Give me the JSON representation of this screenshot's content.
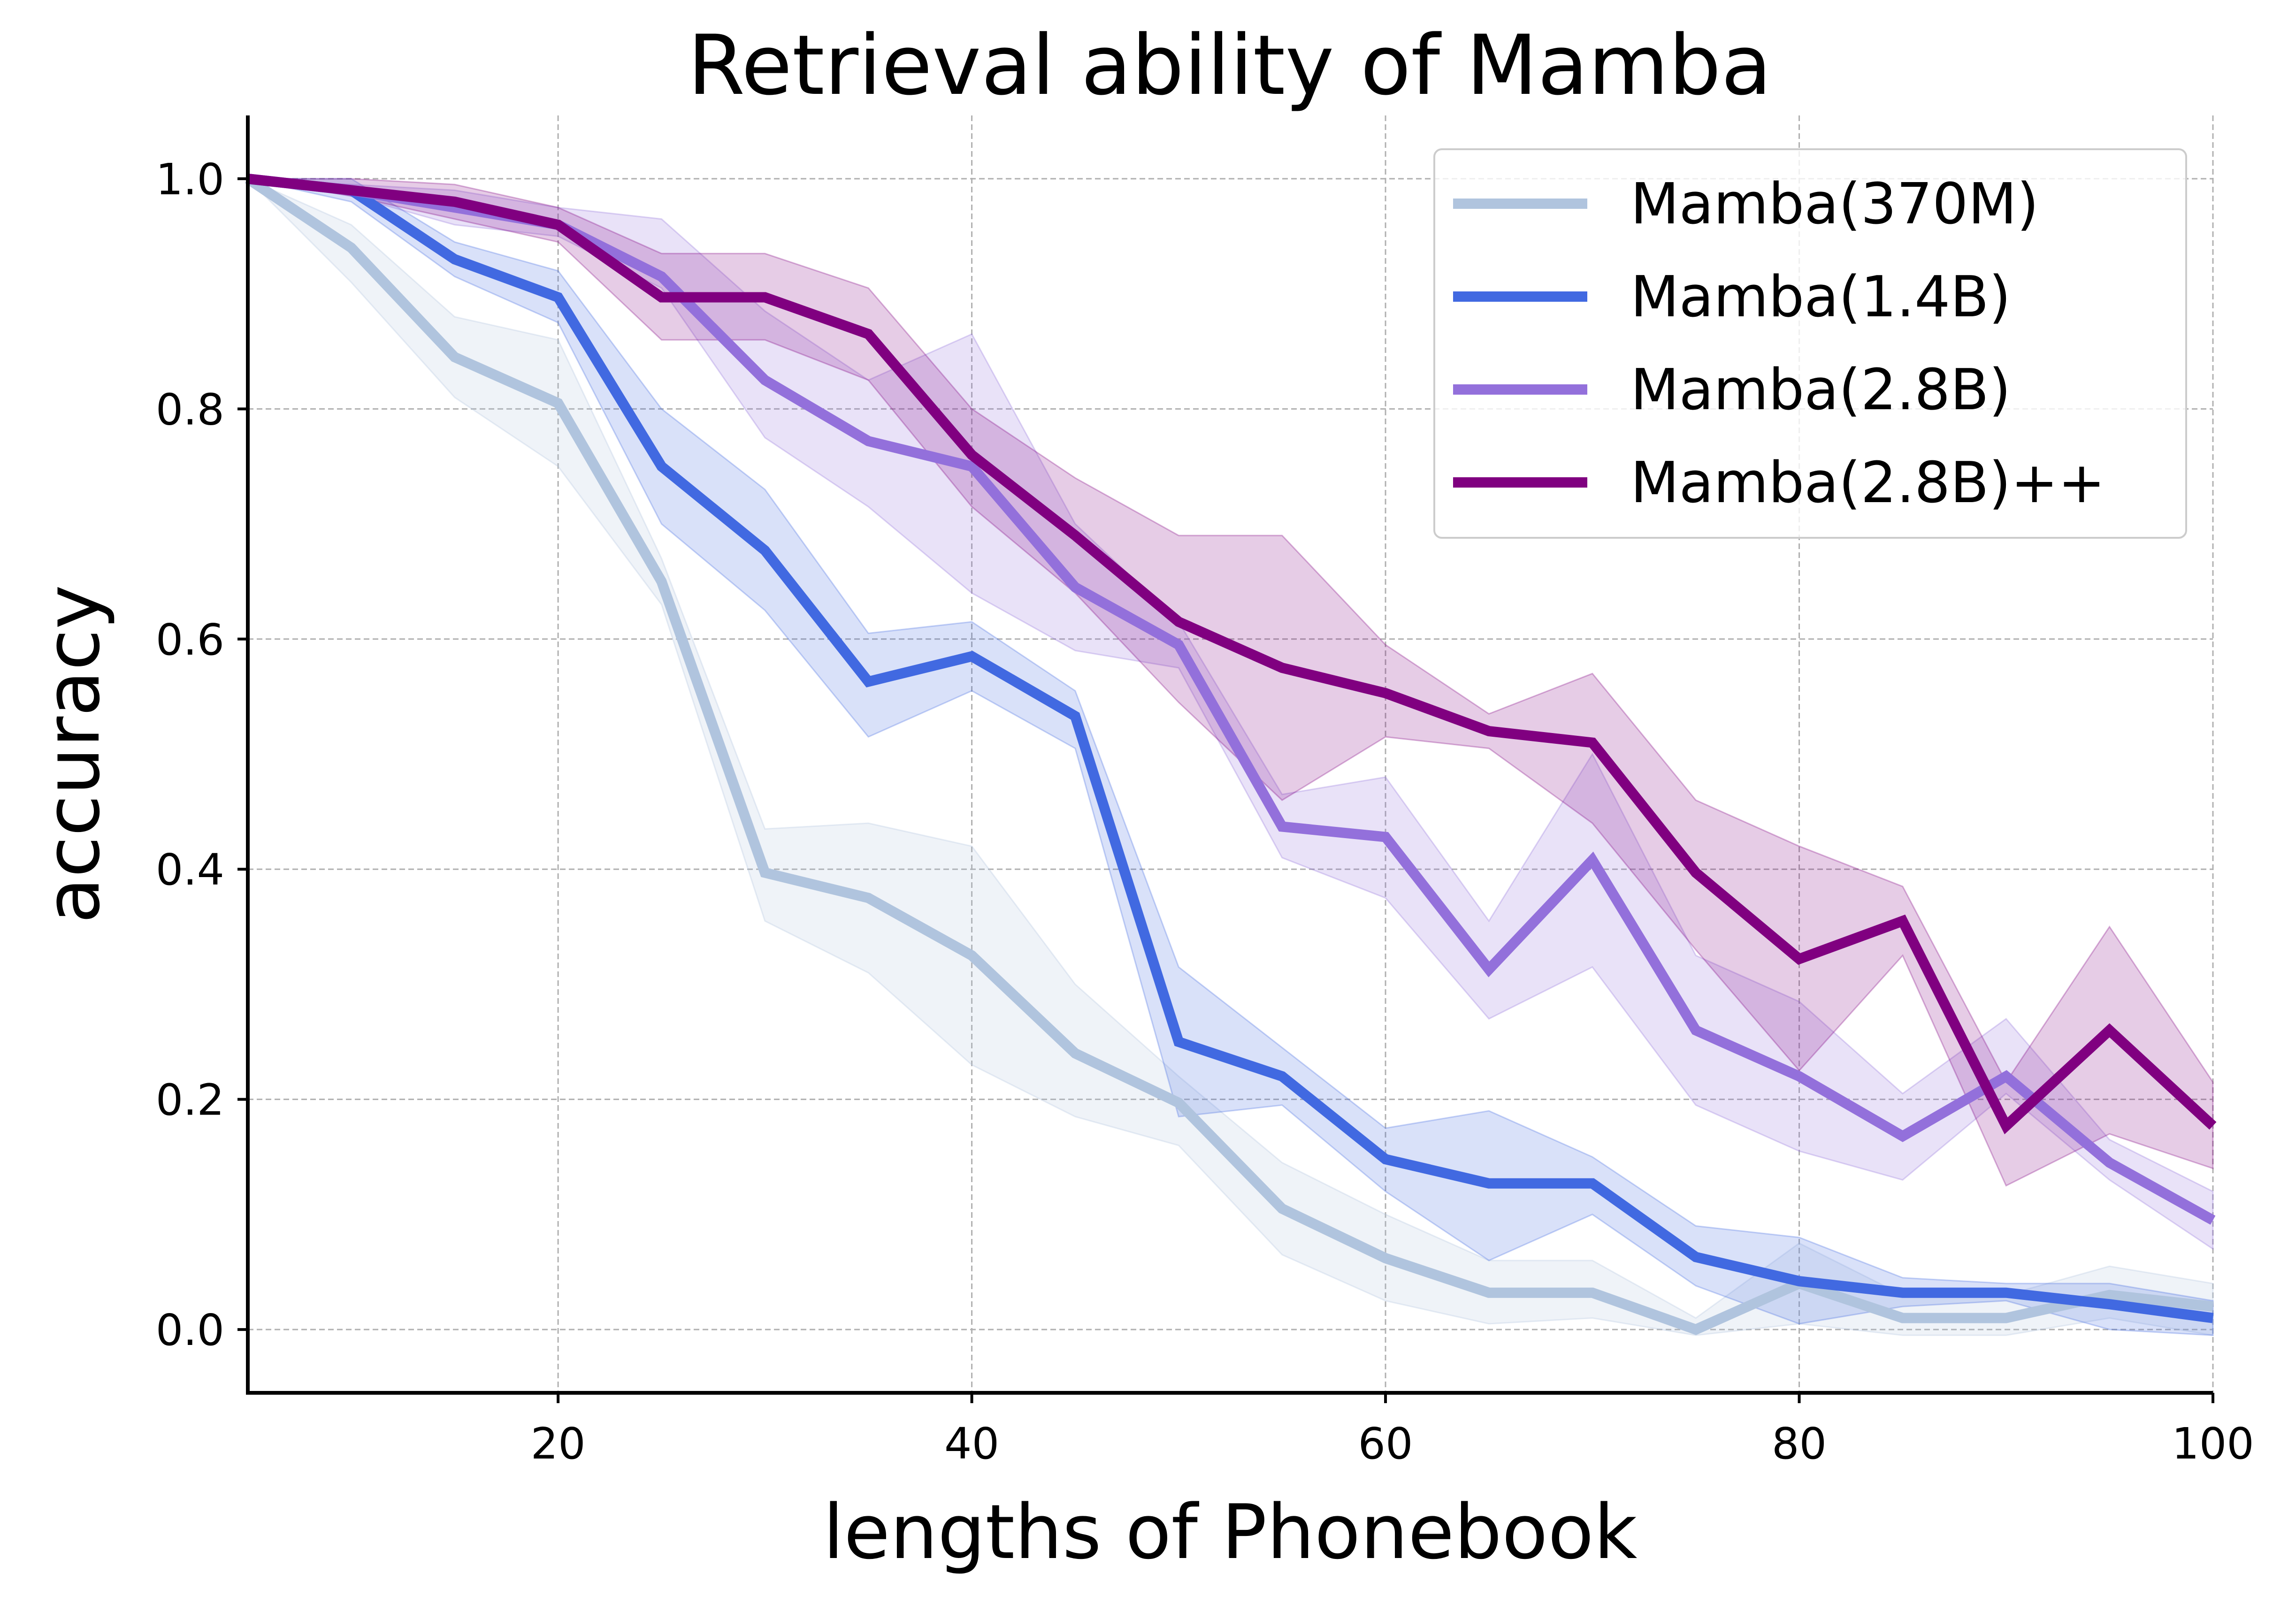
{
  "chart_data": {
    "type": "line",
    "title": "Retrieval ability of Mamba",
    "xlabel": "lengths of Phonebook",
    "ylabel": "accuracy",
    "xlim": [
      5,
      100
    ],
    "ylim": [
      -0.055,
      1.055
    ],
    "grid": true,
    "legend_position": "top-right",
    "xticks": [
      20,
      40,
      60,
      80,
      100
    ],
    "xtick_labels": [
      "20",
      "40",
      "60",
      "80",
      "100"
    ],
    "yticks": [
      0.0,
      0.2,
      0.4,
      0.6,
      0.8,
      1.0
    ],
    "ytick_labels": [
      "0.0",
      "0.2",
      "0.4",
      "0.6",
      "0.8",
      "1.0"
    ],
    "x": [
      5,
      10,
      15,
      20,
      25,
      30,
      35,
      40,
      45,
      50,
      55,
      60,
      65,
      70,
      75,
      80,
      85,
      90,
      95,
      100
    ],
    "series": [
      {
        "name": "Mamba(370M)",
        "color": "#b0c4de",
        "values": [
          1.0,
          0.94,
          0.845,
          0.805,
          0.65,
          0.397,
          0.375,
          0.325,
          0.24,
          0.197,
          0.105,
          0.062,
          0.032,
          0.032,
          0.0,
          0.04,
          0.01,
          0.01,
          0.03,
          0.02
        ],
        "lower": [
          1.0,
          0.91,
          0.81,
          0.75,
          0.63,
          0.355,
          0.31,
          0.23,
          0.185,
          0.16,
          0.065,
          0.025,
          0.005,
          0.01,
          -0.005,
          0.005,
          -0.005,
          -0.005,
          0.01,
          -0.005
        ],
        "upper": [
          1.0,
          0.96,
          0.88,
          0.86,
          0.67,
          0.435,
          0.44,
          0.42,
          0.3,
          0.22,
          0.145,
          0.1,
          0.06,
          0.06,
          0.01,
          0.075,
          0.03,
          0.03,
          0.055,
          0.04
        ]
      },
      {
        "name": "Mamba(1.4B)",
        "color": "#4169e1",
        "values": [
          1.0,
          0.99,
          0.93,
          0.897,
          0.75,
          0.677,
          0.563,
          0.585,
          0.533,
          0.25,
          0.22,
          0.148,
          0.127,
          0.127,
          0.063,
          0.042,
          0.032,
          0.032,
          0.022,
          0.01
        ],
        "lower": [
          1.0,
          0.98,
          0.915,
          0.875,
          0.7,
          0.625,
          0.515,
          0.555,
          0.505,
          0.185,
          0.195,
          0.12,
          0.06,
          0.1,
          0.038,
          0.005,
          0.02,
          0.025,
          0.0,
          -0.005
        ],
        "upper": [
          1.0,
          1.0,
          0.945,
          0.92,
          0.8,
          0.73,
          0.605,
          0.615,
          0.555,
          0.315,
          0.245,
          0.175,
          0.19,
          0.15,
          0.09,
          0.08,
          0.045,
          0.04,
          0.04,
          0.025
        ]
      },
      {
        "name": "Mamba(2.8B)",
        "color": "#9370db",
        "values": [
          1.0,
          0.99,
          0.975,
          0.96,
          0.915,
          0.825,
          0.772,
          0.75,
          0.645,
          0.595,
          0.437,
          0.428,
          0.313,
          0.408,
          0.26,
          0.22,
          0.168,
          0.22,
          0.145,
          0.095
        ],
        "lower": [
          1.0,
          0.985,
          0.96,
          0.95,
          0.905,
          0.775,
          0.715,
          0.64,
          0.59,
          0.575,
          0.41,
          0.375,
          0.27,
          0.315,
          0.195,
          0.155,
          0.13,
          0.205,
          0.13,
          0.07
        ],
        "upper": [
          1.0,
          0.995,
          0.99,
          0.975,
          0.965,
          0.885,
          0.825,
          0.865,
          0.7,
          0.615,
          0.465,
          0.48,
          0.355,
          0.5,
          0.325,
          0.285,
          0.205,
          0.27,
          0.165,
          0.12
        ]
      },
      {
        "name": "Mamba(2.8B)++",
        "color": "#800080",
        "values": [
          1.0,
          0.99,
          0.98,
          0.96,
          0.897,
          0.897,
          0.865,
          0.76,
          0.69,
          0.615,
          0.575,
          0.553,
          0.52,
          0.51,
          0.397,
          0.322,
          0.355,
          0.177,
          0.26,
          0.177
        ],
        "lower": [
          1.0,
          0.985,
          0.965,
          0.945,
          0.86,
          0.86,
          0.825,
          0.715,
          0.64,
          0.545,
          0.46,
          0.515,
          0.505,
          0.44,
          0.33,
          0.225,
          0.325,
          0.125,
          0.17,
          0.14
        ],
        "upper": [
          1.0,
          1.0,
          0.995,
          0.975,
          0.935,
          0.935,
          0.905,
          0.8,
          0.74,
          0.69,
          0.69,
          0.595,
          0.535,
          0.57,
          0.46,
          0.42,
          0.385,
          0.215,
          0.35,
          0.215
        ]
      }
    ]
  }
}
